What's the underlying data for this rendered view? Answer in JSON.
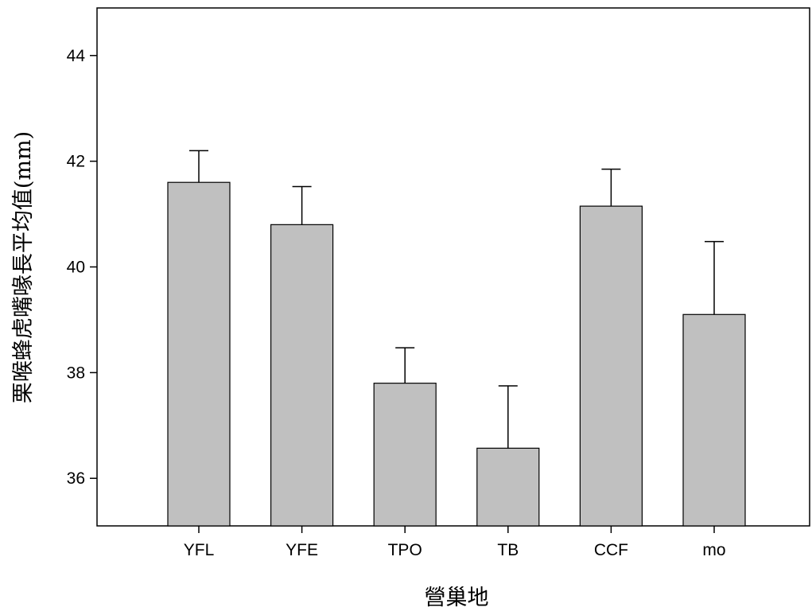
{
  "chart_data": {
    "type": "bar",
    "xlabel": "營巢地",
    "ylabel": "栗喉蜂虎嘴喙長平均值(mm)",
    "categories": [
      "YFL",
      "YFE",
      "TPO",
      "TB",
      "CCF",
      "mo"
    ],
    "values": [
      41.6,
      40.8,
      37.8,
      36.57,
      41.15,
      39.1
    ],
    "error_upper": [
      0.6,
      0.72,
      0.67,
      1.18,
      0.7,
      1.38
    ],
    "ylim": [
      35.1,
      44.9
    ],
    "yticks": [
      "36",
      "38",
      "40",
      "42",
      "44"
    ],
    "bar_color": "#c0c0c0",
    "grid": false,
    "legend": "none"
  }
}
